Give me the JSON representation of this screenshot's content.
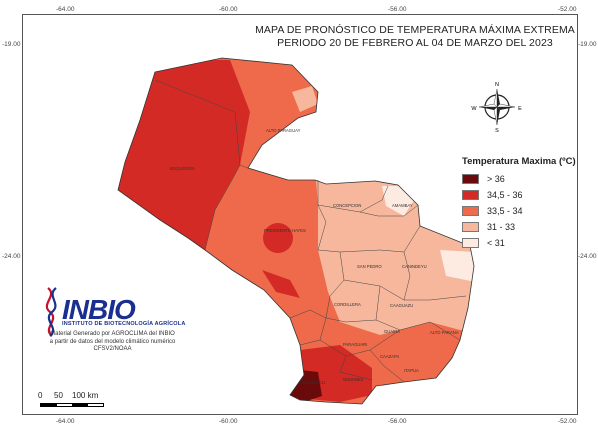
{
  "map": {
    "title_line1": "MAPA DE PRONÓSTICO DE TEMPERATURA MÁXIMA EXTREMA",
    "title_line2": "PERIODO 20 DE FEBRERO AL 04 DE MARZO DEL 2023",
    "lon_ticks": [
      "-64.00",
      "-60.00",
      "-56.00",
      "-52.00"
    ],
    "lat_ticks": [
      "-19.00",
      "-24.00"
    ],
    "lat_ticks_right": [
      "-19.00",
      "-24.00"
    ],
    "lon_ticks_bottom": [
      "-64.00",
      "-60.00",
      "-56.00",
      "-52.00"
    ]
  },
  "compass": {
    "n": "N",
    "s": "S",
    "e": "E",
    "w": "W"
  },
  "legend": {
    "title": "Temperatura Maxima (ºC)",
    "items": [
      {
        "label": "> 36",
        "color": "#6b0a0a"
      },
      {
        "label": "34,5 - 36",
        "color": "#d42a25"
      },
      {
        "label": "33,5 - 34",
        "color": "#ee6a4a"
      },
      {
        "label": "31 - 33",
        "color": "#f6b79c"
      },
      {
        "label": "< 31",
        "color": "#fdebe2"
      }
    ]
  },
  "regions": {
    "alto_paraguay": "ALTO PARAGUAY",
    "boqueron": "BOQUERON",
    "presidente_hayes": "PRESIDENTE HAYES",
    "concepcion": "CONCEPCION",
    "amambay": "AMAMBAY",
    "san_pedro": "SAN PEDRO",
    "canindeyu": "CANINDEYU",
    "cordillera": "CORDILLERA",
    "caaguazu": "CAAGUAZU",
    "alto_parana": "ALTO PARANA",
    "paraguari": "PARAGUARI",
    "guaira": "GUAIRA",
    "caazapa": "CAAZAPA",
    "misiones": "MISIONES",
    "itapua": "ITAPUA",
    "neembucu": "ÑEEMBUCU"
  },
  "logo": {
    "name": "INBIO",
    "subtitle": "INSTITUTO DE BIOTECNOLOGÍA AGRÍCOLA"
  },
  "credit": {
    "line1": "Material Generado por AGROCLIMA del INBIO",
    "line2": "a partir de datos del modelo climático numérico",
    "line3": "CFSV2/NOAA"
  },
  "scale": {
    "labels": [
      "0",
      "50",
      "100 km"
    ]
  }
}
